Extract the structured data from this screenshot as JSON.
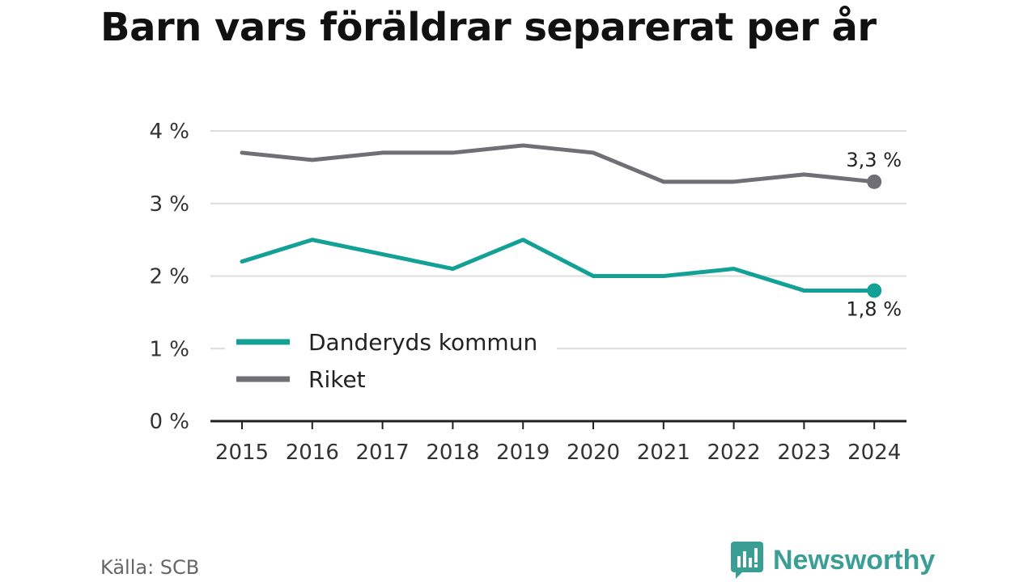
{
  "title": "Barn vars föräldrar separerat per år",
  "source": "Källa: SCB",
  "brand": {
    "name": "Newsworthy",
    "icon": "newsworthy-logo-icon",
    "color": "#3a9e95"
  },
  "chart_data": {
    "type": "line",
    "title": "Barn vars föräldrar separerat per år",
    "x": [
      "2015",
      "2016",
      "2017",
      "2018",
      "2019",
      "2020",
      "2021",
      "2022",
      "2023",
      "2024"
    ],
    "ylim": [
      0,
      4
    ],
    "y_ticks": [
      {
        "value": 0,
        "label": "0 %"
      },
      {
        "value": 1,
        "label": "1 %"
      },
      {
        "value": 2,
        "label": "2 %"
      },
      {
        "value": 3,
        "label": "3 %"
      },
      {
        "value": 4,
        "label": "4 %"
      }
    ],
    "grid": true,
    "legend_position": "bottom-left",
    "series": [
      {
        "name": "Danderyds kommun",
        "color": "#13a195",
        "values": [
          2.2,
          2.5,
          2.3,
          2.1,
          2.5,
          2.0,
          2.0,
          2.1,
          1.8,
          1.8
        ],
        "end_label": "1,8 %"
      },
      {
        "name": "Riket",
        "color": "#6f6f75",
        "values": [
          3.7,
          3.6,
          3.7,
          3.7,
          3.8,
          3.7,
          3.3,
          3.3,
          3.4,
          3.3
        ],
        "end_label": "3,3 %"
      }
    ]
  }
}
